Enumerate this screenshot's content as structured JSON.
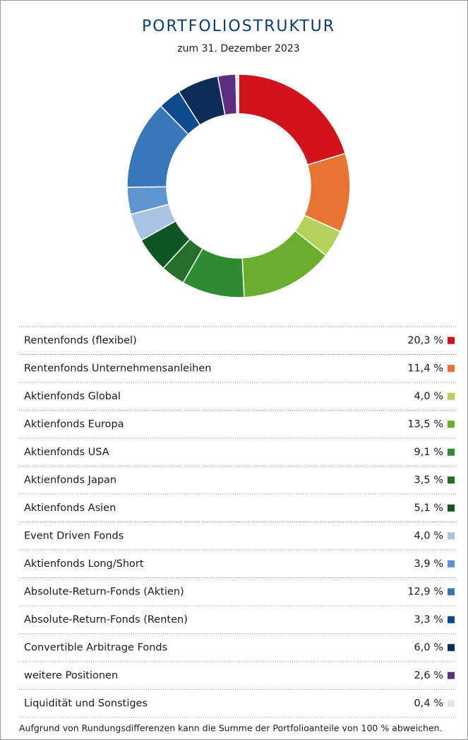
{
  "chart_data": {
    "type": "pie",
    "donut": true,
    "title": "PORTFOLIOSTRUKTUR",
    "subtitle": "zum 31. Dezember 2023",
    "categories": [
      "Rentenfonds (flexibel)",
      "Rentenfonds Unternehmensanleihen",
      "Aktienfonds Global",
      "Aktienfonds Europa",
      "Aktienfonds USA",
      "Aktienfonds Japan",
      "Aktienfonds Asien",
      "Event Driven Fonds",
      "Aktienfonds Long/Short",
      "Absolute-Return-Fonds (Aktien)",
      "Absolute-Return-Fonds (Renten)",
      "Convertible Arbitrage Fonds",
      "weitere Positionen",
      "Liquidität und Sonstiges"
    ],
    "values": [
      20.3,
      11.4,
      4.0,
      13.5,
      9.1,
      3.5,
      5.1,
      4.0,
      3.9,
      12.9,
      3.3,
      6.0,
      2.6,
      0.4
    ],
    "value_labels": [
      "20,3 %",
      "11,4 %",
      "4,0 %",
      "13,5 %",
      "9,1 %",
      "3,5 %",
      "5,1 %",
      "4,0 %",
      "3,9 %",
      "12,9 %",
      "3,3 %",
      "6,0 %",
      "2,6 %",
      "0,4 %"
    ],
    "colors": [
      "#d0121b",
      "#e87433",
      "#b6d05c",
      "#6aae2e",
      "#2e8b32",
      "#24702a",
      "#0e5623",
      "#aac2e3",
      "#5e95d0",
      "#3a77b8",
      "#0b4a8e",
      "#0b2c56",
      "#5c2e80",
      "#e6e6e6"
    ],
    "footnote": "Aufgrund von Rundungsdifferenzen kann die Summe der Portfolioanteile von 100 % abweichen."
  }
}
